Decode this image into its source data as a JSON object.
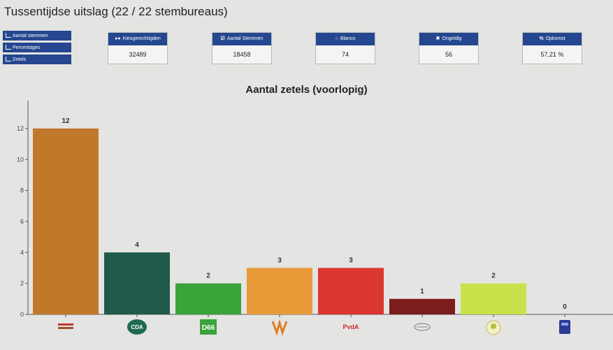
{
  "header": {
    "title": "Tussentijdse uitslag (22 / 22 stembureaus)"
  },
  "view_buttons": [
    {
      "label": "Aantal stemmen"
    },
    {
      "label": "Percentages"
    },
    {
      "label": "Zetels"
    }
  ],
  "stats": [
    {
      "icon": "users-icon",
      "label": "Kiesgerechtigden",
      "value": "32489"
    },
    {
      "icon": "check-square-icon",
      "label": "Aantal Stemmen",
      "value": "18458"
    },
    {
      "icon": "circle-icon",
      "label": "Blanco",
      "value": "74"
    },
    {
      "icon": "x-icon",
      "label": "Ongeldig",
      "value": "56"
    },
    {
      "icon": "percent-icon",
      "label": "Opkomst",
      "value": "57,21 %"
    }
  ],
  "chart_data": {
    "type": "bar",
    "title": "Aantal zetels (voorlopig)",
    "categories": [
      "party-1-logo",
      "CDA",
      "D66",
      "party-4-logo",
      "PvdA",
      "party-6-logo",
      "party-7-logo",
      "party-8-logo"
    ],
    "values": [
      12,
      4,
      2,
      3,
      3,
      1,
      2,
      0
    ],
    "colors": [
      "#c0782b",
      "#1f5a4a",
      "#3aa33a",
      "#e99a38",
      "#dc3631",
      "#7d1c1c",
      "#c9e14b",
      "#2a3b94"
    ],
    "yticks": [
      0,
      2,
      4,
      6,
      8,
      10,
      12
    ],
    "ylim": [
      0,
      13.8
    ],
    "grid": false,
    "legend": "none"
  }
}
